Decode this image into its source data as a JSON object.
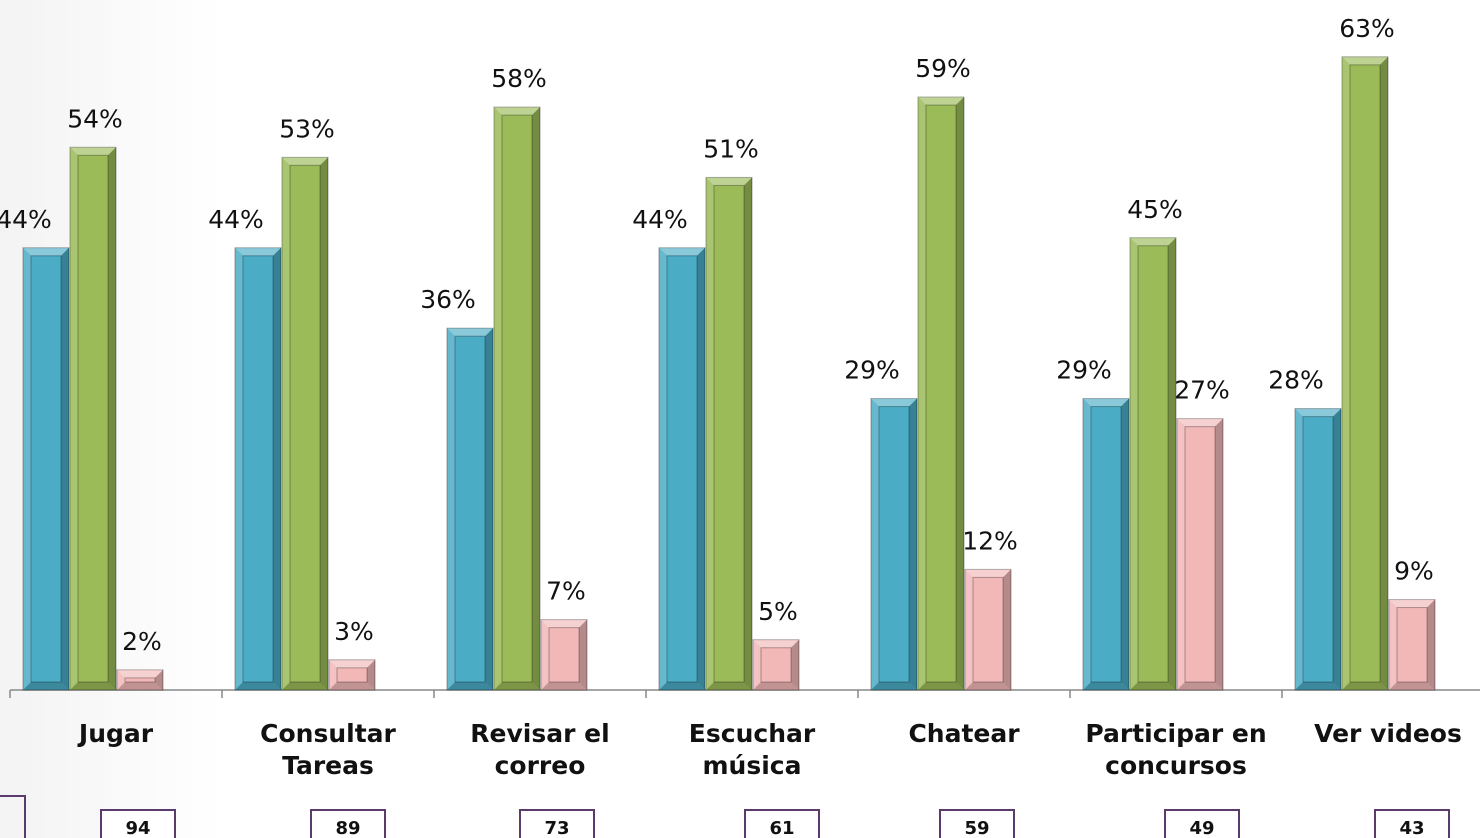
{
  "chart_data": {
    "type": "bar",
    "categories": [
      [
        "Jugar"
      ],
      [
        "Consultar",
        "Tareas"
      ],
      [
        "Revisar el",
        "correo"
      ],
      [
        "Escuchar",
        "música"
      ],
      [
        "Chatear"
      ],
      [
        "Participar en",
        "concursos"
      ],
      [
        "Ver videos"
      ]
    ],
    "series": [
      {
        "color": "#4bacc6",
        "values": [
          44,
          44,
          36,
          44,
          29,
          29,
          28
        ],
        "value_labels": [
          "44%",
          "44%",
          "36%",
          "44%",
          "29%",
          "29%",
          "28%"
        ]
      },
      {
        "color": "#9bbb59",
        "values": [
          54,
          53,
          58,
          51,
          59,
          45,
          63
        ],
        "value_labels": [
          "54%",
          "53%",
          "58%",
          "51%",
          "59%",
          "45%",
          "63%"
        ]
      },
      {
        "color": "#f2b8b8",
        "values": [
          2,
          3,
          7,
          5,
          12,
          27,
          9
        ],
        "value_labels": [
          "2%",
          "3%",
          "7%",
          "5%",
          "12%",
          "27%",
          "9%"
        ]
      }
    ],
    "counts": [
      94,
      89,
      73,
      61,
      59,
      49,
      43
    ]
  }
}
